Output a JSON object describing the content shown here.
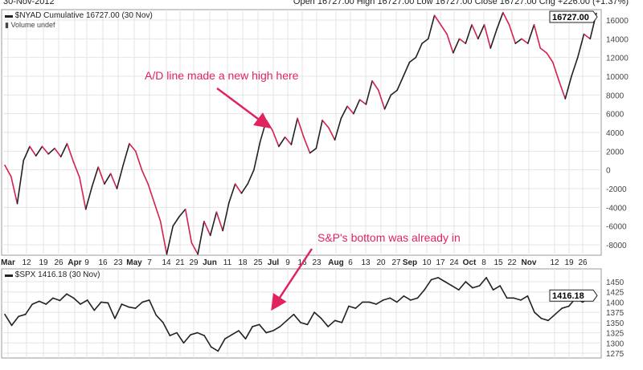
{
  "header": {
    "date": "30-Nov-2012",
    "quote": "Open 16727.00  High 16727.00  Low 16727.00  Close 16727.00  Chg +226.00 (+1.37%)"
  },
  "chart_data": [
    {
      "type": "line",
      "title": "$NYAD Cumulative 16727.00 (30 Nov)",
      "subtitle": "Volume undef",
      "last_label": "16727.00",
      "ylim": [
        -9000,
        17500
      ],
      "yticks": [
        -8000,
        -6000,
        -4000,
        -2000,
        0,
        2000,
        4000,
        6000,
        8000,
        10000,
        12000,
        14000,
        16000
      ],
      "up_color": "#222222",
      "down_color": "#d6204e",
      "values": [
        500,
        -700,
        -3600,
        1000,
        2500,
        1500,
        2500,
        1700,
        2300,
        1400,
        2800,
        900,
        -800,
        -4200,
        -1800,
        300,
        -1500,
        -400,
        -2000,
        500,
        2800,
        2000,
        0,
        -1500,
        -3500,
        -5500,
        -9000,
        -6000,
        -5000,
        -4200,
        -7800,
        -9000,
        -5500,
        -7000,
        -4500,
        -6500,
        -3500,
        -1500,
        -2500,
        -1500,
        0,
        3000,
        5300,
        4200,
        2500,
        3500,
        2700,
        5500,
        3500,
        1800,
        2300,
        5300,
        4500,
        3200,
        5500,
        6800,
        6000,
        7500,
        7000,
        9500,
        8500,
        6500,
        8000,
        8500,
        10000,
        11500,
        12000,
        13500,
        14000,
        16500,
        15500,
        14500,
        12500,
        14000,
        13500,
        15500,
        14000,
        15500,
        13000,
        15000,
        16800,
        15500,
        13500,
        14000,
        13500,
        15500,
        13000,
        12500,
        11500,
        9500,
        7600,
        10000,
        12000,
        14500,
        14000,
        16727
      ]
    },
    {
      "type": "line",
      "title": "$SPX 1416.18 (30 Nov)",
      "last_label": "1416.18",
      "ylim": [
        1265,
        1470
      ],
      "yticks": [
        1275,
        1300,
        1325,
        1350,
        1375,
        1400,
        1425,
        1450
      ],
      "values": [
        1370,
        1343,
        1365,
        1370,
        1395,
        1402,
        1395,
        1410,
        1404,
        1420,
        1410,
        1395,
        1405,
        1380,
        1400,
        1398,
        1360,
        1395,
        1388,
        1385,
        1400,
        1405,
        1368,
        1350,
        1318,
        1325,
        1300,
        1320,
        1325,
        1318,
        1290,
        1280,
        1310,
        1320,
        1330,
        1310,
        1340,
        1345,
        1325,
        1330,
        1340,
        1355,
        1370,
        1350,
        1345,
        1375,
        1360,
        1340,
        1355,
        1350,
        1390,
        1385,
        1400,
        1400,
        1395,
        1405,
        1410,
        1400,
        1415,
        1405,
        1410,
        1430,
        1455,
        1460,
        1450,
        1440,
        1430,
        1450,
        1435,
        1440,
        1460,
        1430,
        1440,
        1410,
        1410,
        1405,
        1415,
        1375,
        1360,
        1355,
        1370,
        1385,
        1390,
        1410,
        1400,
        1412,
        1416.18
      ]
    }
  ],
  "xticks": [
    {
      "l": "Mar",
      "m": true
    },
    {
      "l": "12"
    },
    {
      "l": "19"
    },
    {
      "l": "26"
    },
    {
      "l": "Apr",
      "m": true
    },
    {
      "l": "9"
    },
    {
      "l": "16"
    },
    {
      "l": "23"
    },
    {
      "l": "May",
      "m": true
    },
    {
      "l": "7"
    },
    {
      "l": "14"
    },
    {
      "l": "21"
    },
    {
      "l": "29"
    },
    {
      "l": "Jun",
      "m": true
    },
    {
      "l": "11"
    },
    {
      "l": "18"
    },
    {
      "l": "25"
    },
    {
      "l": "Jul",
      "m": true
    },
    {
      "l": "9"
    },
    {
      "l": "16"
    },
    {
      "l": "23"
    },
    {
      "l": "Aug",
      "m": true
    },
    {
      "l": "6"
    },
    {
      "l": "13"
    },
    {
      "l": "20"
    },
    {
      "l": "27"
    },
    {
      "l": "Sep",
      "m": true
    },
    {
      "l": "10"
    },
    {
      "l": "17"
    },
    {
      "l": "24"
    },
    {
      "l": "Oct",
      "m": true
    },
    {
      "l": "8"
    },
    {
      "l": "15"
    },
    {
      "l": "22"
    },
    {
      "l": "Nov",
      "m": true
    },
    {
      "l": "12"
    },
    {
      "l": "19"
    },
    {
      "l": "26"
    }
  ],
  "annotations": {
    "ad": "A/D line made a new high here",
    "spx": "S&P's bottom was already in"
  },
  "annotation_color": "#e0245e"
}
